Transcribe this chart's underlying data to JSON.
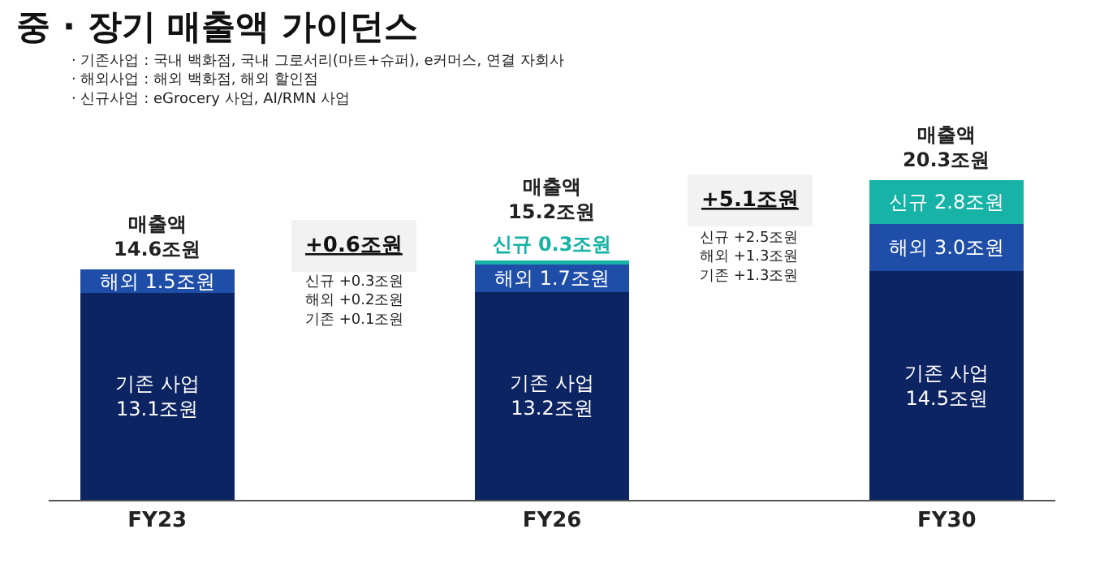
{
  "chart_data": {
    "type": "bar",
    "title": "중 · 장기 매출액 가이던스",
    "stacked": true,
    "categories": [
      "FY23",
      null,
      "FY26",
      null,
      "FY30"
    ],
    "series": [
      {
        "color": "#0c2461",
        "values": [
          13.1,
          null,
          13.2,
          null,
          14.5
        ],
        "value_labels": [
          "기존 사업\n13.1조원",
          null,
          "기존 사업\n13.2조원",
          null,
          "기존 사업\n14.5조원"
        ]
      },
      {
        "color": "#1f4ea8",
        "values": [
          1.5,
          null,
          1.7,
          null,
          3.0
        ],
        "value_labels": [
          "해외 1.5조원",
          null,
          "해외 1.7조원",
          null,
          "해외 3.0조원"
        ]
      },
      {
        "color": "#17b3a6",
        "values": [
          null,
          null,
          0.3,
          null,
          2.8
        ],
        "value_labels": [
          null,
          null,
          "신규 0.3조원",
          null,
          "신규 2.8조원"
        ]
      }
    ],
    "totals": [
      "매출액\n14.6조원",
      null,
      "매출액\n15.2조원",
      null,
      "매출액\n20.3조원"
    ],
    "annotations": [
      "· 기존사업 : 국내 백화점, 국내 그로서리(마트+슈퍼), e커머스, 연결 자회사\n· 해외사업 : 해외 백화점, 해외 할인점\n· 신규사업 : eGrocery 사업, AI/RMN 사업",
      "+0.6조원",
      "신규 +0.3조원\n해외 +0.2조원\n기존 +0.1조원",
      "+5.1조원",
      "신규 +2.5조원\n해외 +1.3조원\n기존 +1.3조원"
    ],
    "tick_labels": "x",
    "grid": false
  }
}
